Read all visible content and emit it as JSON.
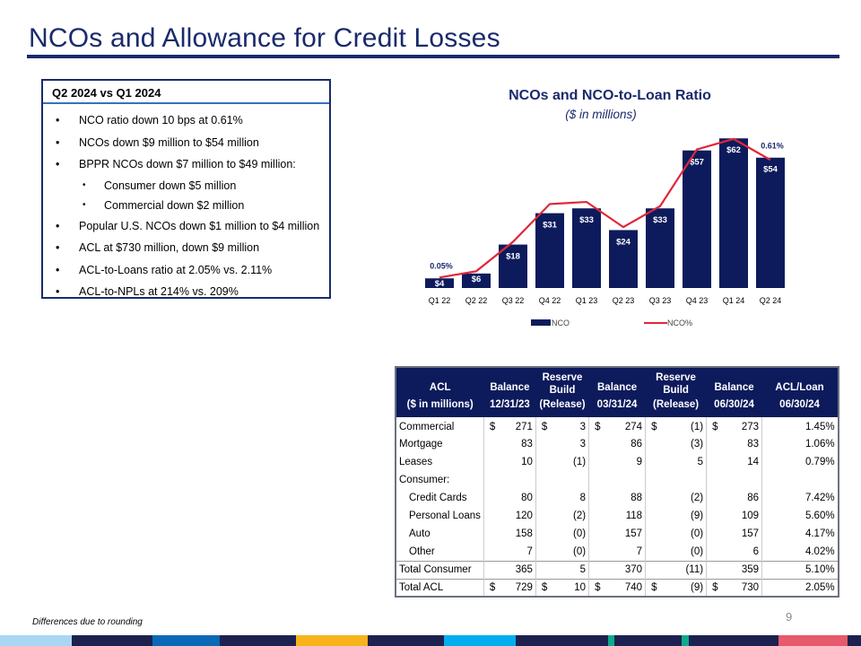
{
  "title": "NCOs and Allowance for Credit Losses",
  "summary": {
    "header": "Q2 2024 vs Q1 2024",
    "items": [
      {
        "text": "NCO ratio down 10 bps at 0.61%",
        "level": 1
      },
      {
        "text": "NCOs down $9 million to $54 million",
        "level": 1
      },
      {
        "text": "BPPR NCOs down $7 million to $49 million:",
        "level": 1
      },
      {
        "text": "Consumer down $5 million",
        "level": 2
      },
      {
        "text": "Commercial down $2 million",
        "level": 2
      },
      {
        "text": "Popular U.S. NCOs down $1 million to $4 million",
        "level": 1
      },
      {
        "text": "ACL at $730 million, down $9 million",
        "level": 1
      },
      {
        "text": "ACL-to-Loans ratio at 2.05% vs. 2.11%",
        "level": 1
      },
      {
        "text": "ACL-to-NPLs at 214% vs. 209%",
        "level": 1
      }
    ]
  },
  "chart_data": {
    "type": "bar+line",
    "title": "NCOs and NCO-to-Loan Ratio",
    "subtitle": "($ in millions)",
    "categories": [
      "Q1 22",
      "Q2 22",
      "Q3 22",
      "Q4 22",
      "Q1 23",
      "Q2 23",
      "Q3 23",
      "Q4 23",
      "Q1 24",
      "Q2 24"
    ],
    "series": [
      {
        "name": "NCO",
        "type": "bar",
        "color": "#0d1b5c",
        "values": [
          4,
          6,
          18,
          31,
          33,
          24,
          33,
          57,
          62,
          54
        ],
        "labels": [
          "$4",
          "$6",
          "$18",
          "$31",
          "$33",
          "$24",
          "$33",
          "$57",
          "$62",
          "$54"
        ]
      },
      {
        "name": "NCO%",
        "type": "line",
        "color": "#e0273a",
        "values": [
          0.05,
          0.08,
          0.22,
          0.4,
          0.41,
          0.29,
          0.39,
          0.66,
          0.71,
          0.61
        ],
        "labels": {
          "0": "0.05%",
          "9": "0.61%"
        }
      }
    ],
    "legend": "bottom",
    "grid": false
  },
  "table": {
    "headers": [
      [
        "ACL",
        "($ in millions)"
      ],
      [
        "Balance",
        "12/31/23"
      ],
      [
        "Reserve",
        "Build",
        "(Release)"
      ],
      [
        "Balance",
        "03/31/24"
      ],
      [
        "Reserve",
        "Build",
        "(Release)"
      ],
      [
        "Balance",
        "06/30/24"
      ],
      [
        "ACL/Loan",
        "06/30/24"
      ]
    ],
    "rows": [
      {
        "label": "Commercial",
        "vals": [
          "271",
          "3",
          "274",
          "(1)",
          "273",
          "1.45%"
        ],
        "dollar": true
      },
      {
        "label": "Mortgage",
        "vals": [
          "83",
          "3",
          "86",
          "(3)",
          "83",
          "1.06%"
        ]
      },
      {
        "label": "Leases",
        "vals": [
          "10",
          "(1)",
          "9",
          "5",
          "14",
          "0.79%"
        ]
      },
      {
        "label": "Consumer:",
        "vals": [
          "",
          "",
          "",
          "",
          "",
          ""
        ]
      },
      {
        "label": "Credit Cards",
        "vals": [
          "80",
          "8",
          "88",
          "(2)",
          "86",
          "7.42%"
        ],
        "indent": true
      },
      {
        "label": "Personal Loans",
        "vals": [
          "120",
          "(2)",
          "118",
          "(9)",
          "109",
          "5.60%"
        ],
        "indent": true
      },
      {
        "label": "Auto",
        "vals": [
          "158",
          "(0)",
          "157",
          "(0)",
          "157",
          "4.17%"
        ],
        "indent": true
      },
      {
        "label": "Other",
        "vals": [
          "7",
          "(0)",
          "7",
          "(0)",
          "6",
          "4.02%"
        ],
        "indent": true
      },
      {
        "label": "Total Consumer",
        "vals": [
          "365",
          "5",
          "370",
          "(11)",
          "359",
          "5.10%"
        ],
        "total": true
      },
      {
        "label": "Total ACL",
        "vals": [
          "729",
          "10",
          "740",
          "(9)",
          "730",
          "2.05%"
        ],
        "dollar": true,
        "total": true
      }
    ],
    "currency": "$"
  },
  "footnote": "Differences due to rounding",
  "page_number": "9",
  "colors": {
    "navy": "#0d1b5c",
    "accent_red": "#e0273a",
    "title_blue": "#1a2a6c"
  }
}
